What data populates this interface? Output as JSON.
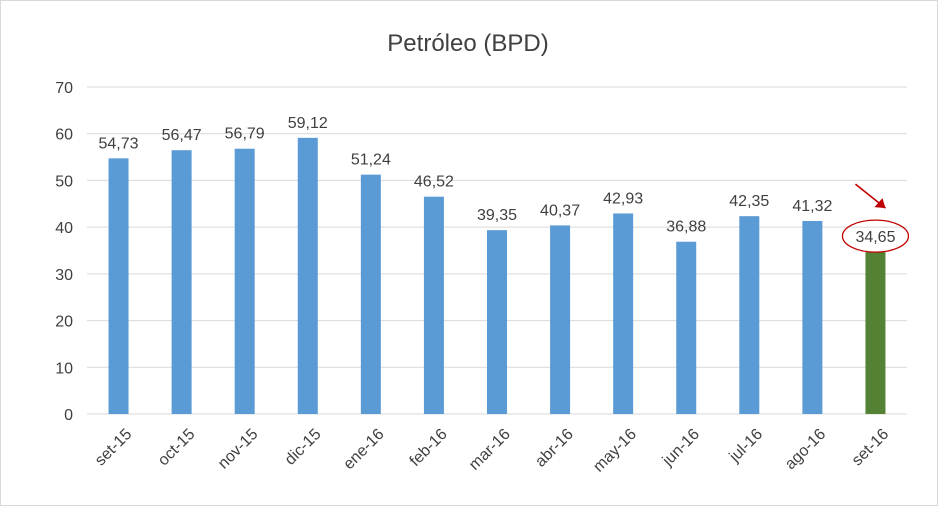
{
  "chart_data": {
    "type": "bar",
    "title": "Petróleo (BPD)",
    "xlabel": "",
    "ylabel": "",
    "ylim": [
      0,
      70
    ],
    "yticks": [
      "0",
      "10",
      "20",
      "30",
      "40",
      "50",
      "60",
      "70"
    ],
    "grid": true,
    "categories": [
      "set-15",
      "oct-15",
      "nov-15",
      "dic-15",
      "ene-16",
      "feb-16",
      "mar-16",
      "abr-16",
      "may-16",
      "jun-16",
      "jul-16",
      "ago-16",
      "set-16"
    ],
    "values": [
      54.73,
      56.47,
      56.79,
      59.12,
      51.24,
      46.52,
      39.35,
      40.37,
      42.93,
      36.88,
      42.35,
      41.32,
      34.65
    ],
    "value_labels": [
      "54,73",
      "56,47",
      "56,79",
      "59,12",
      "51,24",
      "46,52",
      "39,35",
      "40,37",
      "42,93",
      "36,88",
      "42,35",
      "41,32",
      "34,65"
    ],
    "colors": {
      "bar": "#5b9bd5",
      "highlight_bar": "#548235",
      "annotation": "#c00000",
      "grid": "#d9d9d9",
      "text": "#404040"
    },
    "highlight_index": 12
  }
}
